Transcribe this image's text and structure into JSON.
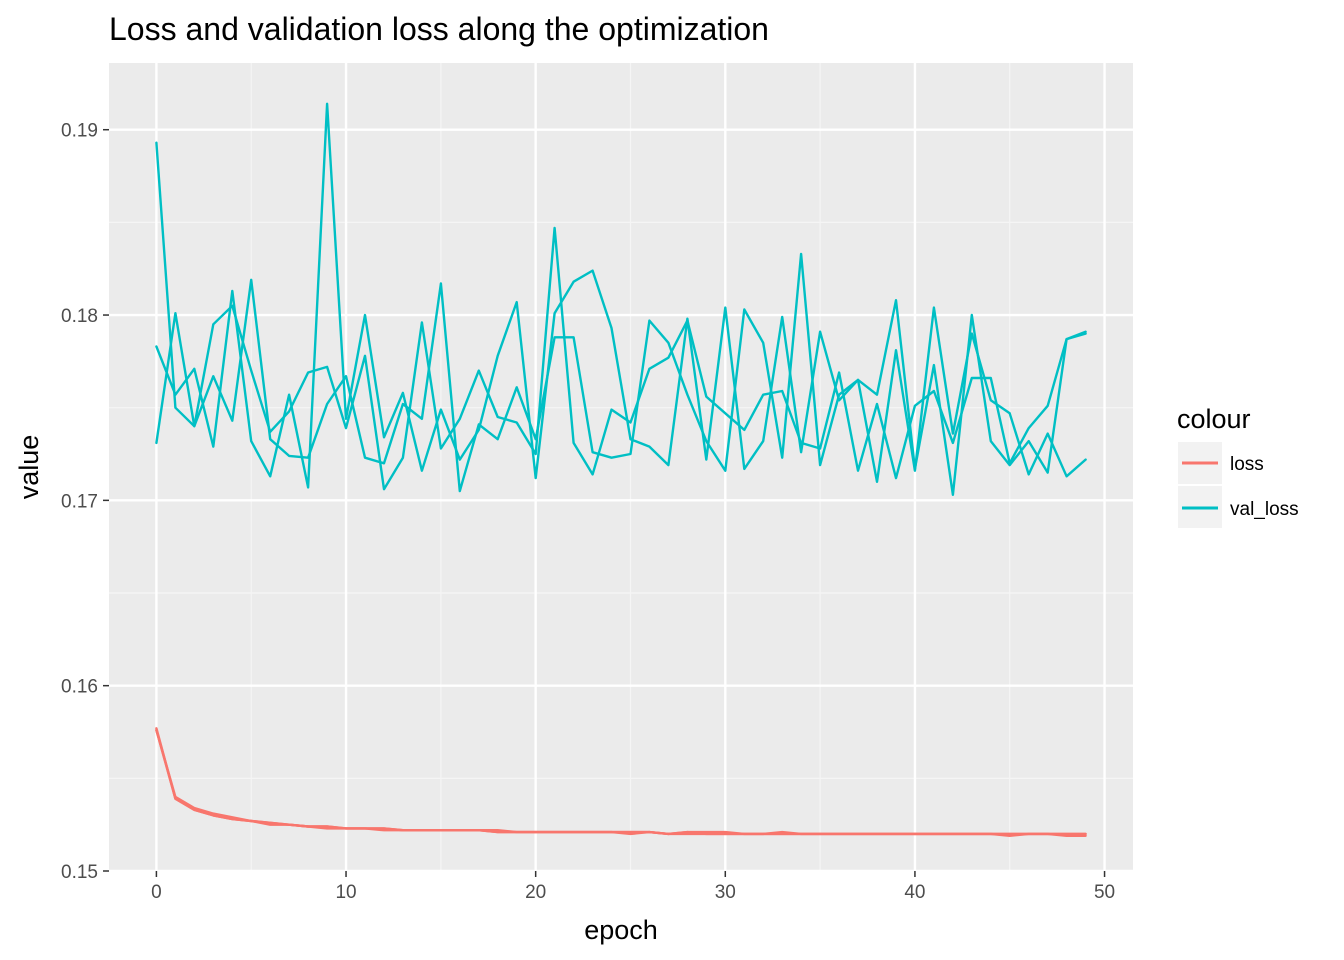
{
  "chart_data": {
    "type": "line",
    "title": "Loss and validation loss along the optimization",
    "xlabel": "epoch",
    "ylabel": "value",
    "xlim": [
      -2.5,
      51.5
    ],
    "ylim": [
      0.15,
      0.1936
    ],
    "x_ticks": [
      0,
      10,
      20,
      30,
      40,
      50
    ],
    "x_tick_labels": [
      "0",
      "10",
      "20",
      "30",
      "40",
      "50"
    ],
    "y_ticks": [
      0.15,
      0.16,
      0.17,
      0.18,
      0.19
    ],
    "y_tick_labels": [
      "0.15",
      "0.16",
      "0.17",
      "0.18",
      "0.19"
    ],
    "grid": true,
    "legend": {
      "title": "colour",
      "position": "right",
      "entries": [
        {
          "label": "loss",
          "color": "#f8766d"
        },
        {
          "label": "val_loss",
          "color": "#00bfc4"
        }
      ]
    },
    "x": [
      0,
      1,
      2,
      3,
      4,
      5,
      6,
      7,
      8,
      9,
      10,
      11,
      12,
      13,
      14,
      15,
      16,
      17,
      18,
      19,
      20,
      21,
      22,
      23,
      24,
      25,
      26,
      27,
      28,
      29,
      30,
      31,
      32,
      33,
      34,
      35,
      36,
      37,
      38,
      39,
      40,
      41,
      42,
      43,
      44,
      45,
      46,
      47,
      48,
      49
    ],
    "series": [
      {
        "name": "loss",
        "color": "#f8766d",
        "values": [
          0.1576,
          0.1539,
          0.1533,
          0.153,
          0.1528,
          0.1527,
          0.1526,
          0.1525,
          0.1524,
          0.1524,
          0.1523,
          0.1523,
          0.1523,
          0.1522,
          0.1522,
          0.1522,
          0.1522,
          0.1522,
          0.1522,
          0.1521,
          0.1521,
          0.1521,
          0.1521,
          0.1521,
          0.1521,
          0.1521,
          0.1521,
          0.152,
          0.1521,
          0.1521,
          0.1521,
          0.152,
          0.152,
          0.1521,
          0.152,
          0.152,
          0.152,
          0.152,
          0.152,
          0.152,
          0.152,
          0.152,
          0.152,
          0.152,
          0.152,
          0.1519,
          0.152,
          0.152,
          0.1519,
          0.1519
        ]
      },
      {
        "name": "loss",
        "color": "#f8766d",
        "values": [
          0.1577,
          0.1539,
          0.1533,
          0.153,
          0.1528,
          0.1527,
          0.1525,
          0.1525,
          0.1524,
          0.1523,
          0.1523,
          0.1523,
          0.1522,
          0.1522,
          0.1522,
          0.1522,
          0.1522,
          0.1522,
          0.1521,
          0.1521,
          0.1521,
          0.1521,
          0.1521,
          0.1521,
          0.1521,
          0.152,
          0.1521,
          0.152,
          0.152,
          0.152,
          0.152,
          0.152,
          0.152,
          0.152,
          0.152,
          0.152,
          0.152,
          0.152,
          0.152,
          0.152,
          0.152,
          0.152,
          0.152,
          0.152,
          0.152,
          0.152,
          0.152,
          0.152,
          0.152,
          0.152
        ]
      },
      {
        "name": "loss",
        "color": "#f8766d",
        "values": [
          0.1576,
          0.154,
          0.1534,
          0.1531,
          0.1529,
          0.1527,
          0.1526,
          0.1525,
          0.1524,
          0.1524,
          0.1523,
          0.1523,
          0.1523,
          0.1522,
          0.1522,
          0.1522,
          0.1522,
          0.1522,
          0.1521,
          0.1521,
          0.1521,
          0.1521,
          0.1521,
          0.1521,
          0.1521,
          0.1521,
          0.1521,
          0.152,
          0.1521,
          0.152,
          0.152,
          0.152,
          0.152,
          0.152,
          0.152,
          0.152,
          0.152,
          0.152,
          0.152,
          0.152,
          0.152,
          0.152,
          0.152,
          0.152,
          0.152,
          0.152,
          0.152,
          0.152,
          0.152,
          0.152
        ]
      },
      {
        "name": "val_loss",
        "color": "#00bfc4",
        "values": [
          0.1893,
          0.175,
          0.174,
          0.1795,
          0.1805,
          0.177,
          0.1737,
          0.1748,
          0.1769,
          0.1772,
          0.1739,
          0.1778,
          0.1706,
          0.1723,
          0.1796,
          0.1728,
          0.1744,
          0.177,
          0.1745,
          0.1742,
          0.1725,
          0.1847,
          0.1731,
          0.1714,
          0.1749,
          0.1742,
          0.1771,
          0.1777,
          0.1797,
          0.1756,
          0.1747,
          0.1738,
          0.1757,
          0.1759,
          0.1731,
          0.1728,
          0.1769,
          0.1716,
          0.1752,
          0.1712,
          0.1751,
          0.1759,
          0.1731,
          0.1766,
          0.1766,
          0.172,
          0.1739,
          0.1751,
          0.1787,
          0.179
        ]
      },
      {
        "name": "val_loss",
        "color": "#00bfc4",
        "values": [
          0.1783,
          0.1757,
          0.1771,
          0.1729,
          0.1813,
          0.1732,
          0.1713,
          0.1757,
          0.1707,
          0.1914,
          0.1744,
          0.18,
          0.1734,
          0.1758,
          0.1716,
          0.1749,
          0.1722,
          0.1738,
          0.1778,
          0.1807,
          0.1712,
          0.1801,
          0.1818,
          0.1824,
          0.1793,
          0.1733,
          0.1729,
          0.1719,
          0.1798,
          0.1722,
          0.1804,
          0.1717,
          0.1732,
          0.1799,
          0.1726,
          0.1791,
          0.1754,
          0.1765,
          0.1757,
          0.1808,
          0.1717,
          0.1773,
          0.1703,
          0.18,
          0.1732,
          0.1719,
          0.1732,
          0.1715,
          0.1787,
          0.1791
        ]
      },
      {
        "name": "val_loss",
        "color": "#00bfc4",
        "values": [
          0.1731,
          0.1801,
          0.174,
          0.1767,
          0.1743,
          0.1819,
          0.1733,
          0.1724,
          0.1723,
          0.1752,
          0.1767,
          0.1723,
          0.172,
          0.1752,
          0.1744,
          0.1817,
          0.1705,
          0.1741,
          0.1733,
          0.1761,
          0.1733,
          0.1788,
          0.1788,
          0.1726,
          0.1723,
          0.1725,
          0.1797,
          0.1785,
          0.1757,
          0.1732,
          0.1716,
          0.1803,
          0.1785,
          0.1723,
          0.1833,
          0.1719,
          0.1757,
          0.1765,
          0.171,
          0.1781,
          0.1716,
          0.1804,
          0.1736,
          0.179,
          0.1754,
          0.1747,
          0.1714,
          0.1736,
          0.1713,
          0.1722
        ]
      }
    ]
  }
}
